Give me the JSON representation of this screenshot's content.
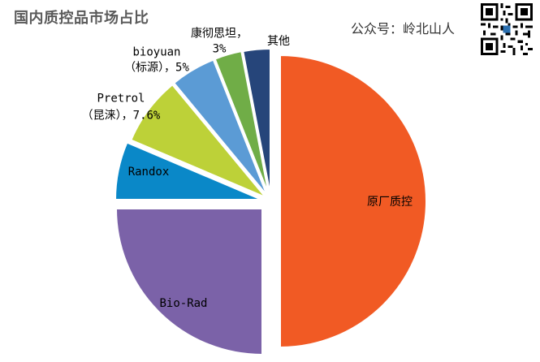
{
  "header": {
    "title": "国内质控品市场占比",
    "brand": "公众号：岭北山人"
  },
  "colors": {
    "原厂质控": "#F15A24",
    "Bio-Rad": "#7B62A8",
    "Randox": "#0A88C8",
    "Pretrol（昆涞）": "#BDD138",
    "bioyuan（标源）": "#5B9BD5",
    "康彻思坦": "#70AD47",
    "其他": "#26457A"
  },
  "chart_data": {
    "type": "pie",
    "title": "国内质控品市场占比",
    "slices": [
      {
        "name": "原厂质控",
        "value": 50,
        "label": "原厂质控"
      },
      {
        "name": "Bio-Rad",
        "value": 25,
        "label": "Bio-Rad"
      },
      {
        "name": "Randox",
        "value": 6.4,
        "label": "Randox"
      },
      {
        "name": "Pretrol（昆涞）",
        "value": 7.6,
        "label_lines": [
          "Pretrol",
          "（昆涞），7.6%"
        ]
      },
      {
        "name": "bioyuan（标源）",
        "value": 5,
        "label_lines": [
          "bioyuan",
          "（标源），5%"
        ]
      },
      {
        "name": "康彻思坦",
        "value": 3,
        "label_lines": [
          "康彻思坦，",
          "3%"
        ]
      },
      {
        "name": "其他",
        "value": 3,
        "label": "其他"
      }
    ]
  }
}
